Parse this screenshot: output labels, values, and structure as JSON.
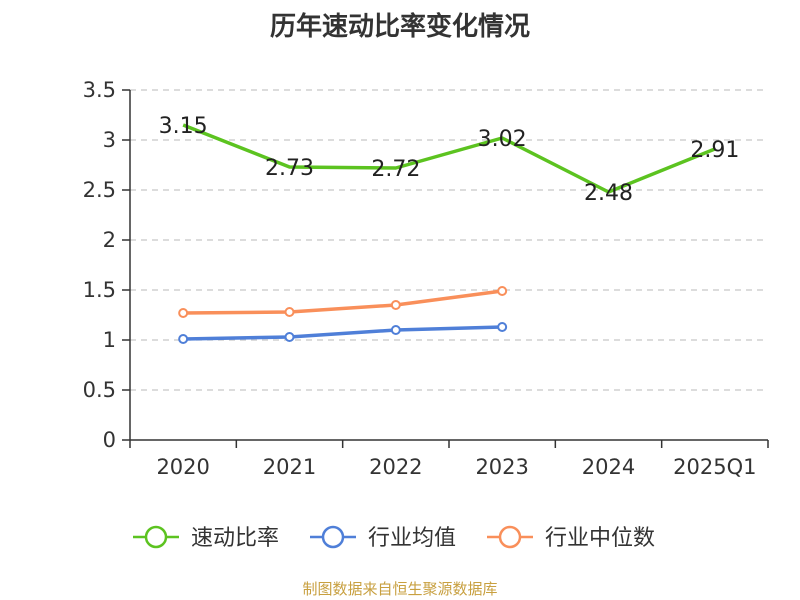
{
  "chart_data": {
    "type": "line",
    "title": "历年速动比率变化情况",
    "categories": [
      "2020",
      "2021",
      "2022",
      "2023",
      "2024",
      "2025Q1"
    ],
    "ylim": [
      0,
      3.5
    ],
    "yticks": [
      "0",
      "0.5",
      "1",
      "1.5",
      "2",
      "2.5",
      "3",
      "3.5"
    ],
    "grid": true,
    "legend_position": "bottom",
    "series": [
      {
        "name": "速动比率",
        "color": "#5cc320",
        "values": [
          3.15,
          2.73,
          2.72,
          3.02,
          2.48,
          2.91
        ],
        "labels": [
          "3.15",
          "2.73",
          "2.72",
          "3.02",
          "2.48",
          "2.91"
        ]
      },
      {
        "name": "行业均值",
        "color": "#4f7fd8",
        "values": [
          1.01,
          1.03,
          1.1,
          1.13,
          null,
          null
        ]
      },
      {
        "name": "行业中位数",
        "color": "#f98f5a",
        "values": [
          1.27,
          1.28,
          1.35,
          1.49,
          null,
          null
        ]
      }
    ]
  },
  "source_note": "制图数据来自恒生聚源数据库"
}
